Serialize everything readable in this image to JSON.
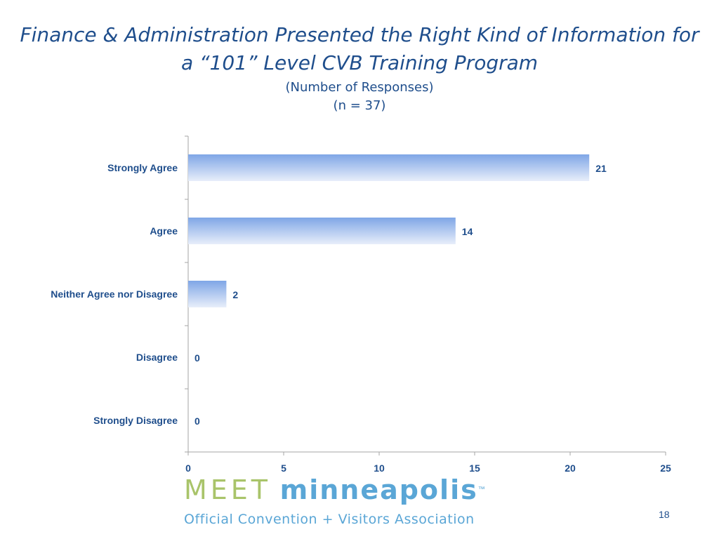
{
  "slide": {
    "title_line1": "Finance & Administration Presented the Right Kind of Information for",
    "title_line2": "a “101” Level CVB Training Program",
    "subtitle_line1": "(Number of Responses)",
    "subtitle_line2": "(n = 37)",
    "page_number": "18"
  },
  "logo": {
    "word1": "MEET",
    "word2": "minneapolis",
    "trademark": "™",
    "tagline": "Official Convention + Visitors Association"
  },
  "colors": {
    "title": "#1f4e8c",
    "bar_top": "#7fa6e6",
    "bar_bottom": "#e8eefa",
    "axis": "#a6a6a6",
    "label": "#1f4e8c"
  },
  "chart_data": {
    "type": "bar",
    "orientation": "horizontal",
    "categories": [
      "Strongly Agree",
      "Agree",
      "Neither Agree nor Disagree",
      "Disagree",
      "Strongly Disagree"
    ],
    "values": [
      21,
      14,
      2,
      0,
      0
    ],
    "xlim": [
      0,
      25
    ],
    "xticks": [
      0,
      5,
      10,
      15,
      20,
      25
    ],
    "data_labels": true,
    "grid": false,
    "legend": "none"
  }
}
